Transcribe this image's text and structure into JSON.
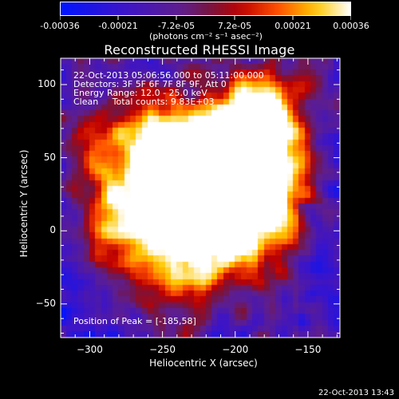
{
  "colorbar": {
    "tick_labels": [
      "-0.00036",
      "-0.00021",
      "-7.2e-05",
      "7.2e-05",
      "0.00021",
      "0.00036"
    ],
    "unit": "(photons cm⁻² s⁻¹ asec⁻²)",
    "range": [
      -0.00036,
      0.00036
    ]
  },
  "title": "Reconstructed RHESSI Image",
  "info": {
    "line1": "22-Oct-2013 05:06:56.000 to 05:11:00.000",
    "line2": "Detectors: 3F 5F 6F 7F 8F 9F, Att 0",
    "line3": "Energy Range: 12.0 - 25.0 keV",
    "line4": "Clean     Total counts: 9.83E+03",
    "peak": "Position of Peak = [-185,58]"
  },
  "axes": {
    "xlabel": "Heliocentric X (arcsec)",
    "ylabel": "Heliocentric Y (arcsec)",
    "xlim": [
      -320,
      -128
    ],
    "ylim": [
      -73,
      118
    ],
    "xticks": [
      -300,
      -250,
      -200,
      -150
    ],
    "yticks": [
      -50,
      0,
      50,
      100
    ]
  },
  "footer": "22-Oct-2013 13:43",
  "colors": {
    "low": "#0018ff",
    "mid": "#5a1a8a",
    "high": "#ffffff",
    "background": "#000000"
  }
}
